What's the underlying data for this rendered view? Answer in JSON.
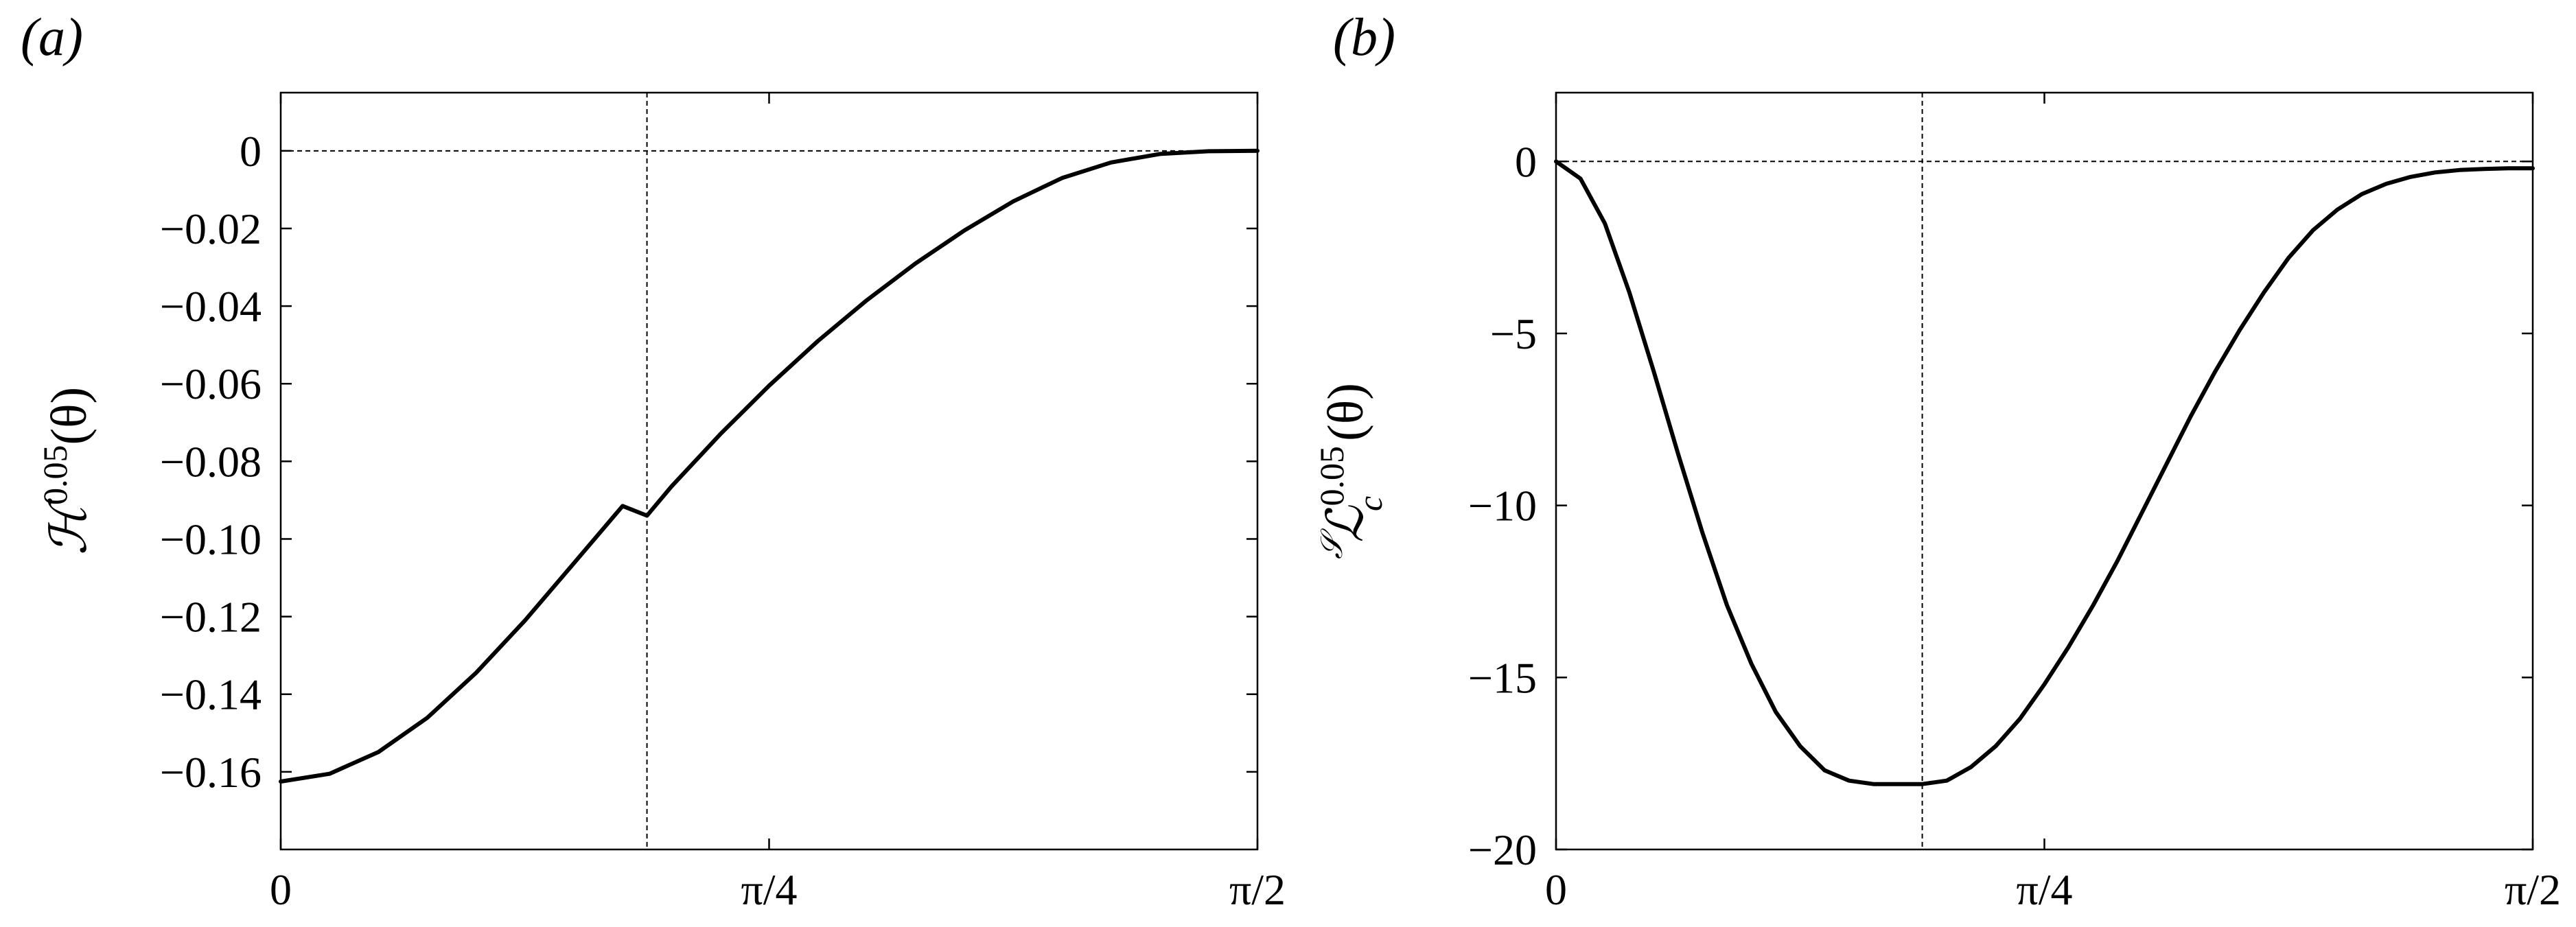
{
  "chart_data": [
    {
      "type": "line",
      "panel_label": "(a)",
      "ylabel_main": "ℋ",
      "ylabel_sup": "0.05",
      "ylabel_arg": "(θ)",
      "xlim": [
        0,
        1.5708
      ],
      "ylim": [
        -0.18,
        0.015
      ],
      "xticks": [
        0,
        0.7854,
        1.5708
      ],
      "xtick_labels": [
        "0",
        "π/4",
        "π/2"
      ],
      "yticks": [
        0,
        -0.02,
        -0.04,
        -0.06,
        -0.08,
        -0.1,
        -0.12,
        -0.14,
        -0.16
      ],
      "ytick_labels": [
        "0",
        "−0.02",
        "−0.04",
        "−0.06",
        "−0.08",
        "−0.10",
        "−0.12",
        "−0.14",
        "−0.16"
      ],
      "hline": 0,
      "vline": 0.589,
      "grid": false,
      "color": "#000000",
      "series": [
        {
          "x": [
            0,
            0.0785,
            0.1571,
            0.2356,
            0.3142,
            0.3927,
            0.4712,
            0.5498,
            0.589,
            0.6283,
            0.7069,
            0.7854,
            0.8639,
            0.9425,
            1.021,
            1.0996,
            1.1781,
            1.2566,
            1.3352,
            1.4137,
            1.4923,
            1.5708
          ],
          "y": [
            -0.1625,
            -0.1605,
            -0.1549,
            -0.1461,
            -0.1345,
            -0.121,
            -0.1063,
            -0.0915,
            -0.094,
            -0.0865,
            -0.073,
            -0.0605,
            -0.049,
            -0.0385,
            -0.029,
            -0.0205,
            -0.013,
            -0.007,
            -0.003,
            -0.0008,
            -0.0001,
            0.0
          ]
        }
      ]
    },
    {
      "type": "line",
      "panel_label": "(b)",
      "ylabel_main": "ℒ",
      "ylabel_sub": "c",
      "ylabel_sup": "0.05",
      "ylabel_pre": "𝒮",
      "ylabel_arg": "(θ)",
      "xlim": [
        0,
        1.5708
      ],
      "ylim": [
        -20,
        2
      ],
      "xticks": [
        0,
        0.7854,
        1.5708
      ],
      "xtick_labels": [
        "0",
        "π/4",
        "π/2"
      ],
      "yticks": [
        0,
        -5,
        -10,
        -15,
        -20
      ],
      "ytick_labels": [
        "0",
        "−5",
        "−10",
        "−15",
        "−20"
      ],
      "hline": 0,
      "vline": 0.589,
      "grid": false,
      "color": "#000000",
      "series": [
        {
          "x": [
            0,
            0.0393,
            0.0785,
            0.1178,
            0.1571,
            0.1963,
            0.2356,
            0.2749,
            0.3142,
            0.3534,
            0.3927,
            0.432,
            0.4712,
            0.5105,
            0.5498,
            0.589,
            0.6283,
            0.6676,
            0.7069,
            0.7461,
            0.7854,
            0.8247,
            0.8639,
            0.9032,
            0.9425,
            0.9817,
            1.021,
            1.0603,
            1.0996,
            1.1388,
            1.1781,
            1.2174,
            1.2566,
            1.2959,
            1.3352,
            1.3744,
            1.4137,
            1.453,
            1.4923,
            1.5315,
            1.5708
          ],
          "y": [
            0.0,
            -0.5,
            -1.8,
            -3.8,
            -6.1,
            -8.5,
            -10.8,
            -12.9,
            -14.6,
            -16.0,
            -17.0,
            -17.7,
            -18.0,
            -18.1,
            -18.1,
            -18.1,
            -18.0,
            -17.6,
            -17.0,
            -16.2,
            -15.2,
            -14.1,
            -12.9,
            -11.6,
            -10.2,
            -8.8,
            -7.4,
            -6.1,
            -4.9,
            -3.8,
            -2.8,
            -2.0,
            -1.4,
            -0.95,
            -0.65,
            -0.45,
            -0.32,
            -0.25,
            -0.22,
            -0.2,
            -0.2
          ]
        }
      ]
    }
  ]
}
